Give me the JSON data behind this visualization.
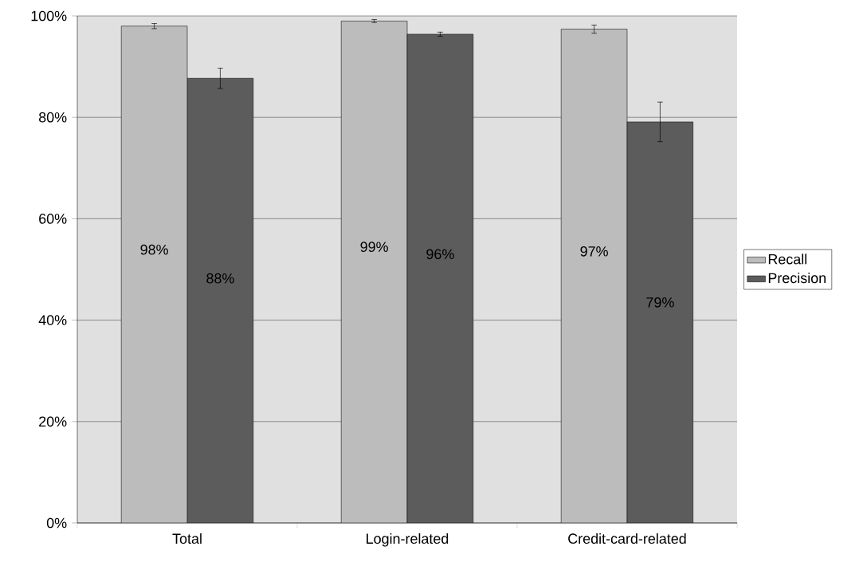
{
  "chart_data": {
    "type": "bar",
    "categories": [
      "Total",
      "Login-related",
      "Credit-card-related"
    ],
    "series": [
      {
        "name": "Recall",
        "color": "#bcbcbc",
        "values": [
          98,
          99,
          97.4
        ],
        "errors": [
          0.5,
          0.3,
          0.8
        ],
        "value_labels": [
          "98%",
          "99%",
          "97%"
        ]
      },
      {
        "name": "Precision",
        "color": "#5c5c5c",
        "values": [
          87.7,
          96.4,
          79.1
        ],
        "errors": [
          2,
          0.4,
          3.9
        ],
        "value_labels": [
          "88%",
          "96%",
          "79%"
        ]
      }
    ],
    "ylim": [
      0,
      100
    ],
    "yticks": [
      {
        "value": 0,
        "label": "0%"
      },
      {
        "value": 20,
        "label": "20%"
      },
      {
        "value": 40,
        "label": "40%"
      },
      {
        "value": 60,
        "label": "60%"
      },
      {
        "value": 80,
        "label": "80%"
      },
      {
        "value": 100,
        "label": "100%"
      }
    ],
    "grid": "y",
    "legend": "right"
  }
}
